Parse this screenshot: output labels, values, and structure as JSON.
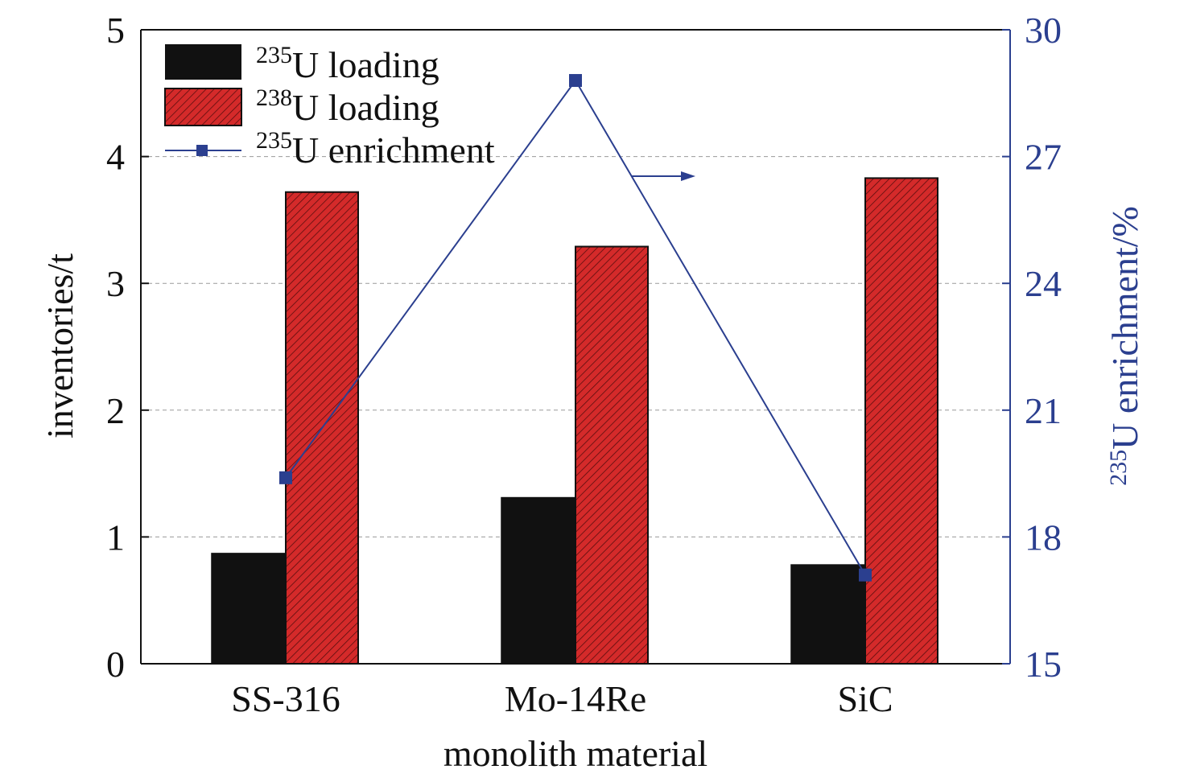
{
  "chart_data": {
    "type": "bar",
    "categories": [
      "SS-316",
      "Mo-14Re",
      "SiC"
    ],
    "xlabel": "monolith material",
    "ylabel": "inventories/t",
    "y2label_sup": "235",
    "y2label_rest": "U enrichment/%",
    "ylim": [
      0,
      5
    ],
    "y2lim": [
      15,
      30
    ],
    "yticks": [
      "0",
      "1",
      "2",
      "3",
      "4",
      "5"
    ],
    "y2ticks": [
      "15",
      "18",
      "21",
      "24",
      "27",
      "30"
    ],
    "grid": "horizontal dashed",
    "legend_position": "top-left",
    "series": [
      {
        "legend_sup": "235",
        "legend_rest": "U loading",
        "type": "bar",
        "axis": "left",
        "color": "#111111",
        "values": [
          0.87,
          1.31,
          0.78
        ]
      },
      {
        "legend_sup": "238",
        "legend_rest": "U loading",
        "type": "bar",
        "axis": "left",
        "color": "#d42a2a",
        "hatch": true,
        "values": [
          3.72,
          3.29,
          3.83
        ]
      },
      {
        "legend_sup": "235",
        "legend_rest": "U enrichment",
        "type": "line",
        "axis": "right",
        "color": "#2b3f8f",
        "values": [
          19.4,
          28.8,
          17.1
        ]
      }
    ]
  }
}
